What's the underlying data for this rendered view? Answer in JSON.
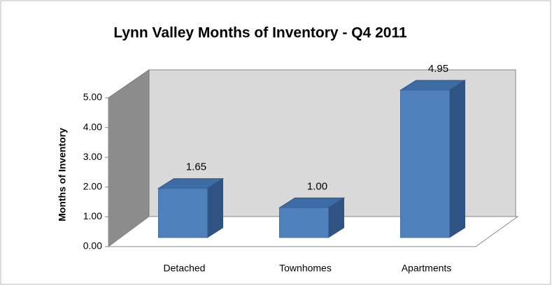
{
  "chart_data": {
    "type": "bar3d",
    "title": "Lynn Valley Months of Inventory - Q4 2011",
    "y_label": "Months of Inventory",
    "categories": [
      "Detached",
      "Townhomes",
      "Apartments"
    ],
    "values": [
      1.65,
      1.0,
      4.95
    ],
    "value_labels": [
      "1.65",
      "1.00",
      "4.95"
    ],
    "color": "#4f81bd",
    "ylim": [
      0,
      5
    ],
    "yticks": [
      {
        "value": 0,
        "label": "0.00"
      },
      {
        "value": 1,
        "label": "1.00"
      },
      {
        "value": 2,
        "label": "2.00"
      },
      {
        "value": 3,
        "label": "3.00"
      },
      {
        "value": 4,
        "label": "4.00"
      },
      {
        "value": 5,
        "label": "5.00"
      }
    ]
  }
}
